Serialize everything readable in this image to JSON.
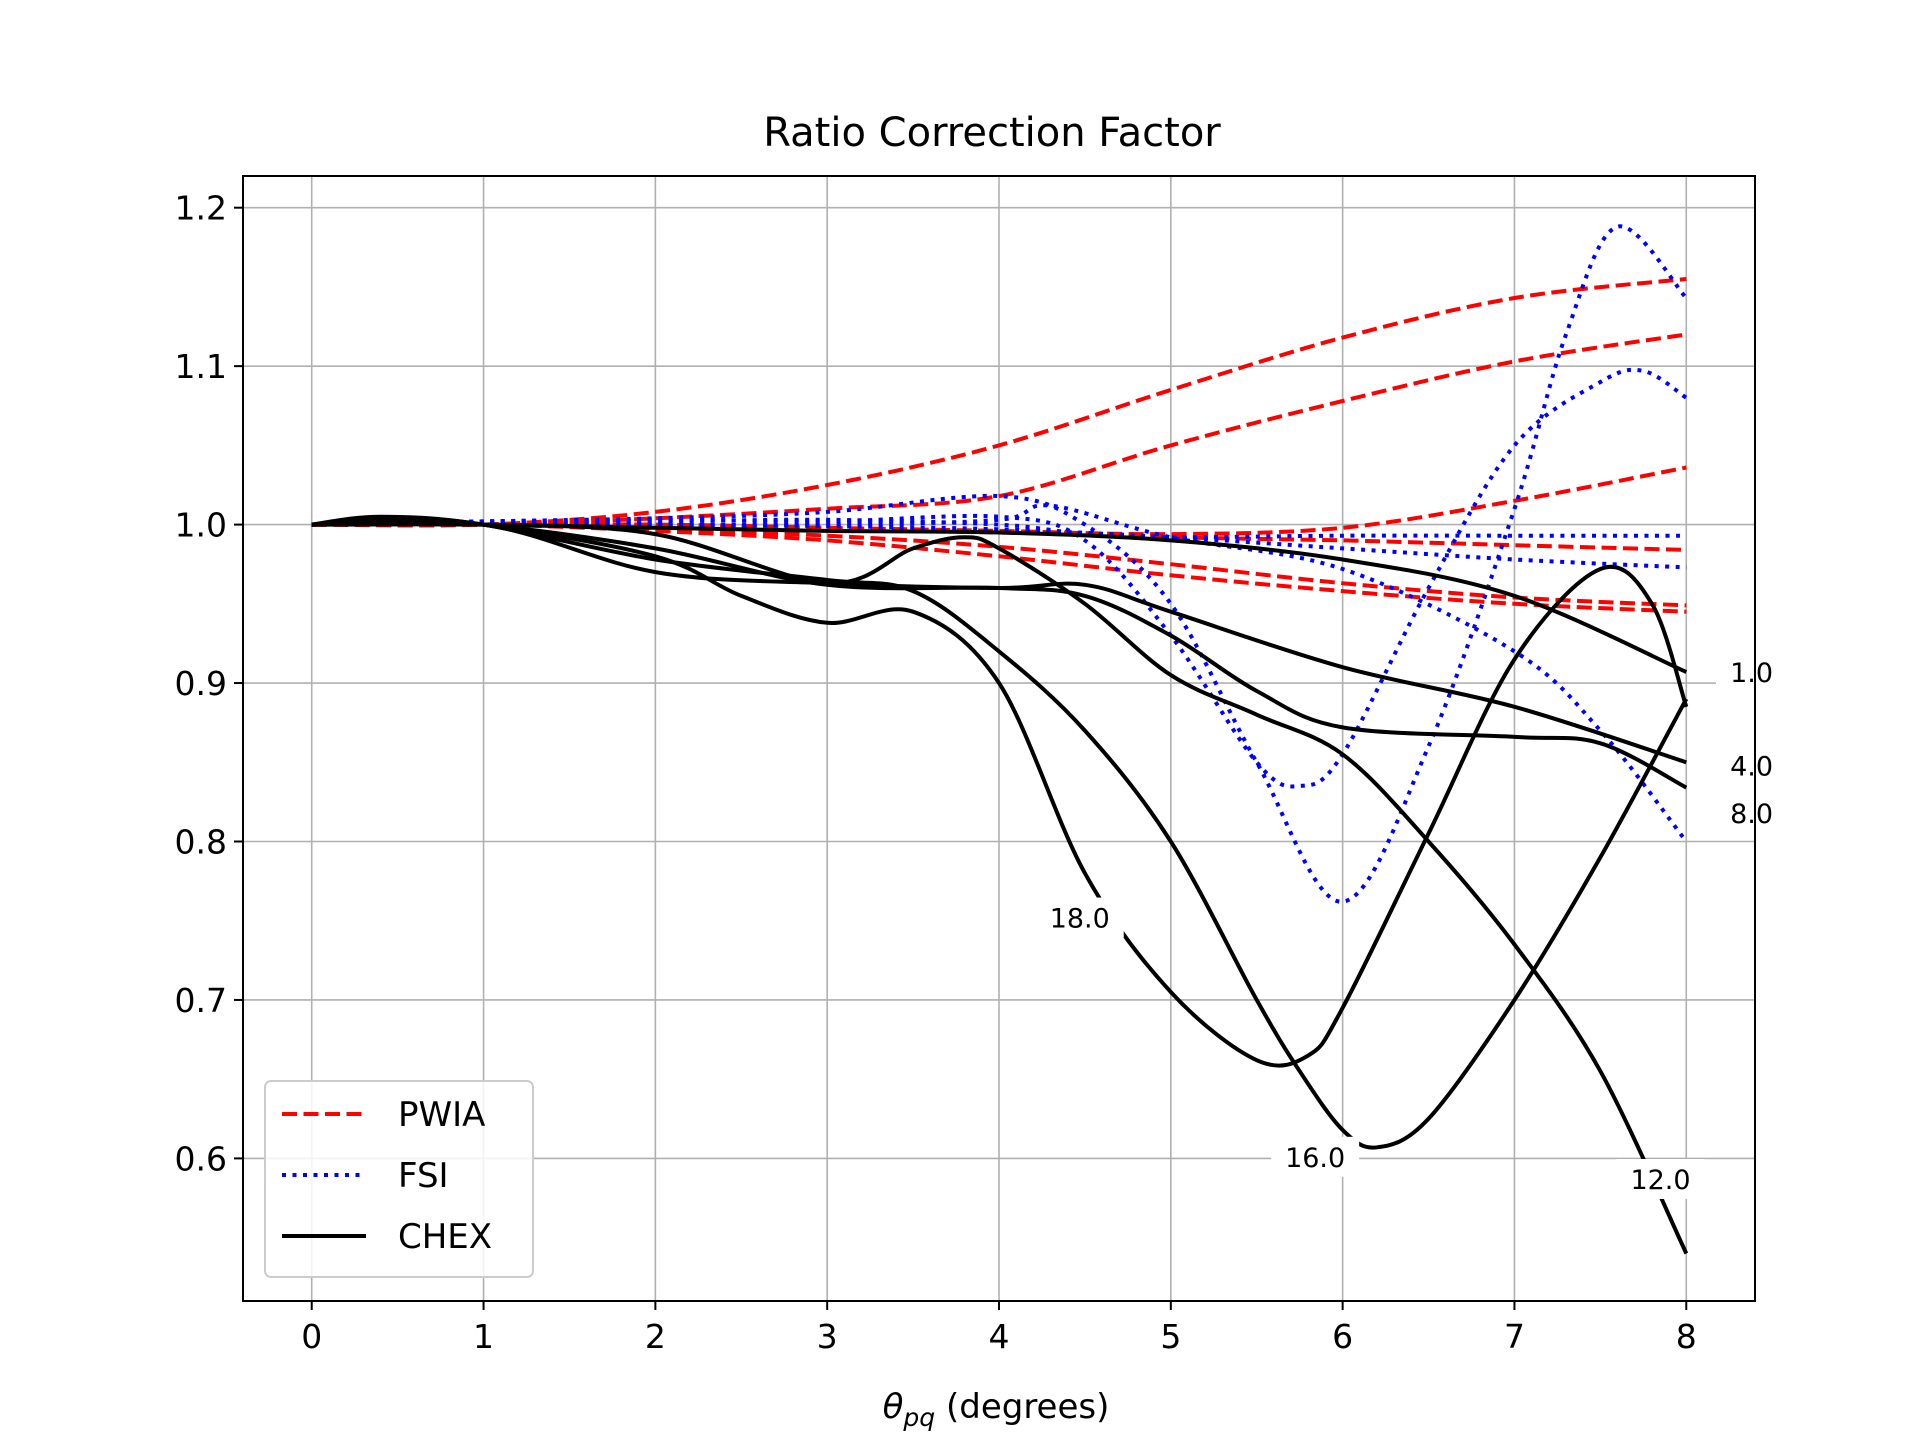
{
  "chart_data": {
    "type": "line",
    "title": "Ratio Correction Factor",
    "xlabel_symbol": "θ",
    "xlabel_subscript": "pq",
    "xlabel_rest": " (degrees)",
    "ylabel": "",
    "xlim": [
      -0.4,
      8.4
    ],
    "ylim": [
      0.51,
      1.22
    ],
    "xticks": [
      0,
      1,
      2,
      3,
      4,
      5,
      6,
      7,
      8
    ],
    "xtick_labels": [
      "0",
      "1",
      "2",
      "3",
      "4",
      "5",
      "6",
      "7",
      "8"
    ],
    "yticks": [
      0.6,
      0.7,
      0.8,
      0.9,
      1.0,
      1.1,
      1.2
    ],
    "ytick_labels": [
      "0.6",
      "0.7",
      "0.8",
      "0.9",
      "1.0",
      "1.1",
      "1.2"
    ],
    "grid": true,
    "legend_position": "bottom-left",
    "legend": [
      {
        "label": "PWIA",
        "style": "dashed",
        "color": "#ff0000"
      },
      {
        "label": "FSI",
        "style": "dotted",
        "color": "#0000ff"
      },
      {
        "label": "CHEX",
        "style": "solid",
        "color": "#000000"
      }
    ],
    "colors": {
      "PWIA": "#ff0000",
      "FSI": "#0000ff",
      "CHEX": "#000000"
    },
    "series": [
      {
        "group": "PWIA",
        "points": [
          [
            0,
            1.0
          ],
          [
            1,
            1.0
          ],
          [
            2,
            1.008
          ],
          [
            3,
            1.025
          ],
          [
            4,
            1.05
          ],
          [
            5,
            1.085
          ],
          [
            6,
            1.118
          ],
          [
            7,
            1.143
          ],
          [
            8,
            1.155
          ]
        ]
      },
      {
        "group": "PWIA",
        "points": [
          [
            0,
            1.0
          ],
          [
            1,
            1.0
          ],
          [
            2,
            1.004
          ],
          [
            3,
            1.01
          ],
          [
            4,
            1.018
          ],
          [
            5,
            1.05
          ],
          [
            6,
            1.078
          ],
          [
            7,
            1.103
          ],
          [
            8,
            1.12
          ]
        ]
      },
      {
        "group": "PWIA",
        "points": [
          [
            0,
            1.0
          ],
          [
            1,
            1.0
          ],
          [
            2,
            1.0
          ],
          [
            3,
            0.998
          ],
          [
            4,
            0.996
          ],
          [
            5,
            0.994
          ],
          [
            6,
            0.998
          ],
          [
            7,
            1.015
          ],
          [
            8,
            1.036
          ]
        ]
      },
      {
        "group": "PWIA",
        "points": [
          [
            0,
            1.0
          ],
          [
            1,
            1.0
          ],
          [
            2,
            0.999
          ],
          [
            3,
            0.997
          ],
          [
            4,
            0.995
          ],
          [
            5,
            0.992
          ],
          [
            6,
            0.99
          ],
          [
            7,
            0.987
          ],
          [
            8,
            0.984
          ]
        ]
      },
      {
        "group": "PWIA",
        "points": [
          [
            0,
            1.0
          ],
          [
            1,
            1.0
          ],
          [
            2,
            0.997
          ],
          [
            3,
            0.993
          ],
          [
            4,
            0.986
          ],
          [
            5,
            0.975
          ],
          [
            6,
            0.963
          ],
          [
            7,
            0.954
          ],
          [
            8,
            0.949
          ]
        ]
      },
      {
        "group": "PWIA",
        "points": [
          [
            0,
            1.0
          ],
          [
            1,
            1.0
          ],
          [
            2,
            0.996
          ],
          [
            3,
            0.99
          ],
          [
            4,
            0.98
          ],
          [
            5,
            0.968
          ],
          [
            6,
            0.958
          ],
          [
            7,
            0.95
          ],
          [
            8,
            0.945
          ]
        ]
      },
      {
        "group": "FSI",
        "points": [
          [
            0,
            1.0
          ],
          [
            1,
            1.002
          ],
          [
            2,
            1.004
          ],
          [
            3,
            1.008
          ],
          [
            4,
            1.018
          ],
          [
            4.5,
            1.0
          ],
          [
            5,
            0.95
          ],
          [
            5.5,
            0.85
          ],
          [
            6,
            0.762
          ],
          [
            6.5,
            0.86
          ],
          [
            7,
            1.01
          ],
          [
            7.3,
            1.12
          ],
          [
            7.6,
            1.188
          ],
          [
            8,
            1.143
          ]
        ]
      },
      {
        "group": "FSI",
        "points": [
          [
            0,
            1.0
          ],
          [
            1,
            1.002
          ],
          [
            2,
            1.003
          ],
          [
            3,
            1.002
          ],
          [
            4,
            1.005
          ],
          [
            4.5,
            0.99
          ],
          [
            5,
            0.93
          ],
          [
            5.5,
            0.85
          ],
          [
            5.75,
            0.835
          ],
          [
            6,
            0.855
          ],
          [
            6.5,
            0.96
          ],
          [
            7,
            1.05
          ],
          [
            7.5,
            1.09
          ],
          [
            7.75,
            1.097
          ],
          [
            8,
            1.08
          ]
        ]
      },
      {
        "group": "FSI",
        "points": [
          [
            0,
            1.0
          ],
          [
            1,
            1.002
          ],
          [
            2,
            1.002
          ],
          [
            3,
            1.003
          ],
          [
            4,
            1.0
          ],
          [
            4.5,
            0.994
          ],
          [
            5,
            0.992
          ],
          [
            6,
            0.993
          ],
          [
            7,
            0.993
          ],
          [
            8,
            0.993
          ]
        ]
      },
      {
        "group": "FSI",
        "points": [
          [
            0,
            1.0
          ],
          [
            1,
            1.001
          ],
          [
            2,
            1.0
          ],
          [
            3,
            0.999
          ],
          [
            4,
            0.997
          ],
          [
            5,
            0.992
          ],
          [
            6,
            0.985
          ],
          [
            7,
            0.978
          ],
          [
            8,
            0.973
          ]
        ]
      },
      {
        "group": "FSI",
        "points": [
          [
            0,
            1.0
          ],
          [
            1,
            1.001
          ],
          [
            2,
            1.0
          ],
          [
            3,
            1.0
          ],
          [
            4,
            1.003
          ],
          [
            4.3,
            1.012
          ],
          [
            5,
            0.992
          ],
          [
            6,
            0.972
          ],
          [
            7,
            0.92
          ],
          [
            7.5,
            0.87
          ],
          [
            8,
            0.8
          ]
        ]
      },
      {
        "group": "CHEX",
        "label": "1.0",
        "points": [
          [
            0,
            1.0
          ],
          [
            1,
            1.0
          ],
          [
            2,
            0.998
          ],
          [
            3,
            0.996
          ],
          [
            4,
            0.995
          ],
          [
            5,
            0.99
          ],
          [
            6,
            0.978
          ],
          [
            7,
            0.955
          ],
          [
            8,
            0.907
          ]
        ]
      },
      {
        "group": "CHEX",
        "label": "4.0",
        "points": [
          [
            0,
            1.0
          ],
          [
            1,
            1.0
          ],
          [
            2,
            0.97
          ],
          [
            3,
            0.963
          ],
          [
            4,
            0.96
          ],
          [
            4.5,
            0.962
          ],
          [
            5,
            0.945
          ],
          [
            6,
            0.91
          ],
          [
            7,
            0.885
          ],
          [
            8,
            0.85
          ]
        ]
      },
      {
        "group": "CHEX",
        "label": "8.0",
        "points": [
          [
            0,
            1.0
          ],
          [
            0.4,
            1.002
          ],
          [
            1,
            1.0
          ],
          [
            2,
            0.985
          ],
          [
            3,
            0.962
          ],
          [
            4,
            0.96
          ],
          [
            4.5,
            0.955
          ],
          [
            5,
            0.93
          ],
          [
            5.5,
            0.895
          ],
          [
            6,
            0.872
          ],
          [
            7,
            0.866
          ],
          [
            7.5,
            0.862
          ],
          [
            8,
            0.834
          ]
        ]
      },
      {
        "group": "CHEX",
        "label": "12.0",
        "points": [
          [
            0,
            1.0
          ],
          [
            1,
            1.0
          ],
          [
            2,
            0.994
          ],
          [
            3,
            0.963
          ],
          [
            3.5,
            0.985
          ],
          [
            3.8,
            0.992
          ],
          [
            4,
            0.985
          ],
          [
            4.5,
            0.95
          ],
          [
            5,
            0.905
          ],
          [
            5.5,
            0.88
          ],
          [
            6,
            0.855
          ],
          [
            6.5,
            0.8
          ],
          [
            7,
            0.735
          ],
          [
            7.5,
            0.655
          ],
          [
            8,
            0.54
          ]
        ]
      },
      {
        "group": "CHEX",
        "label": "16.0",
        "points": [
          [
            0,
            1.0
          ],
          [
            0.4,
            1.005
          ],
          [
            1,
            1.0
          ],
          [
            2,
            0.978
          ],
          [
            3,
            0.965
          ],
          [
            3.5,
            0.958
          ],
          [
            4,
            0.92
          ],
          [
            4.5,
            0.87
          ],
          [
            5,
            0.8
          ],
          [
            5.5,
            0.7
          ],
          [
            5.75,
            0.655
          ],
          [
            6,
            0.618
          ],
          [
            6.2,
            0.607
          ],
          [
            6.5,
            0.625
          ],
          [
            7,
            0.7
          ],
          [
            7.5,
            0.79
          ],
          [
            8,
            0.89
          ]
        ]
      },
      {
        "group": "CHEX",
        "label": "18.0",
        "points": [
          [
            0,
            1.0
          ],
          [
            0.4,
            1.003
          ],
          [
            1,
            1.0
          ],
          [
            2,
            0.98
          ],
          [
            2.5,
            0.955
          ],
          [
            3,
            0.938
          ],
          [
            3.5,
            0.945
          ],
          [
            4,
            0.9
          ],
          [
            4.5,
            0.78
          ],
          [
            5,
            0.705
          ],
          [
            5.5,
            0.662
          ],
          [
            5.8,
            0.665
          ],
          [
            6,
            0.695
          ],
          [
            6.5,
            0.805
          ],
          [
            7,
            0.915
          ],
          [
            7.5,
            0.972
          ],
          [
            7.8,
            0.95
          ],
          [
            8,
            0.885
          ]
        ]
      }
    ]
  }
}
